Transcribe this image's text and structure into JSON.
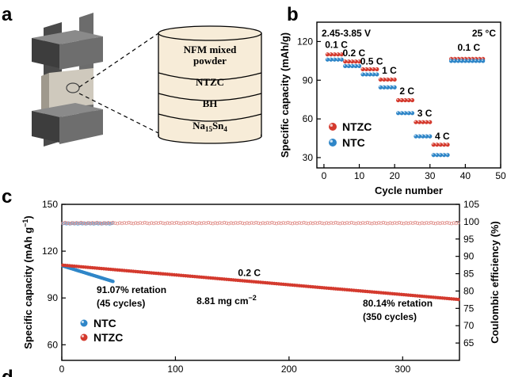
{
  "panel_a": {
    "label": "a",
    "layers": [
      "NFM mixed",
      "powder",
      "NTZC",
      "BH",
      "Na",
      "15",
      "Sn",
      "4"
    ],
    "colors": {
      "layer_fill": "#f7ecd8",
      "die_dark": "#5a5a5a",
      "die_light": "#d0ccc4"
    }
  },
  "panel_b_label": "b",
  "panel_c_label": "c",
  "panel_d_label": "d",
  "chart_data": [
    {
      "type": "scatter",
      "panel": "b",
      "title": "",
      "xlabel": "Cycle number",
      "ylabel": "Specific capacity (mAh/g)",
      "xlim": [
        -2,
        50
      ],
      "ylim": [
        22,
        135
      ],
      "xticks": [
        0,
        10,
        20,
        30,
        40,
        50
      ],
      "yticks": [
        30,
        60,
        90,
        120
      ],
      "annotations": [
        "2.45-3.85 V",
        "25 °C"
      ],
      "rate_labels": [
        {
          "text": "0.1 C",
          "x": 3.5,
          "y": 115
        },
        {
          "text": "0.2 C",
          "x": 8.5,
          "y": 108.5
        },
        {
          "text": "0.5 C",
          "x": 13.5,
          "y": 102
        },
        {
          "text": "1 C",
          "x": 18.5,
          "y": 95
        },
        {
          "text": "2 C",
          "x": 23.5,
          "y": 79
        },
        {
          "text": "3 C",
          "x": 28.5,
          "y": 62
        },
        {
          "text": "4 C",
          "x": 33.5,
          "y": 44
        },
        {
          "text": "0.1 C",
          "x": 41,
          "y": 113
        }
      ],
      "legend": [
        "NTZC",
        "NTC"
      ],
      "series": [
        {
          "name": "NTZC",
          "color": "#d43a2e",
          "segments": [
            {
              "x_start": 1,
              "x_end": 5,
              "y": 110
            },
            {
              "x_start": 6,
              "x_end": 10,
              "y": 104.5
            },
            {
              "x_start": 11,
              "x_end": 15,
              "y": 98.5
            },
            {
              "x_start": 16,
              "x_end": 20,
              "y": 90.5
            },
            {
              "x_start": 21,
              "x_end": 25,
              "y": 74.5
            },
            {
              "x_start": 26,
              "x_end": 30,
              "y": 57.5
            },
            {
              "x_start": 31,
              "x_end": 35,
              "y": 40
            },
            {
              "x_start": 36,
              "x_end": 45,
              "y": 106.5
            }
          ]
        },
        {
          "name": "NTC",
          "color": "#2f86c8",
          "segments": [
            {
              "x_start": 1,
              "x_end": 5,
              "y": 106
            },
            {
              "x_start": 6,
              "x_end": 10,
              "y": 101
            },
            {
              "x_start": 11,
              "x_end": 15,
              "y": 94.5
            },
            {
              "x_start": 16,
              "x_end": 20,
              "y": 84.5
            },
            {
              "x_start": 21,
              "x_end": 25,
              "y": 64.5
            },
            {
              "x_start": 26,
              "x_end": 30,
              "y": 46.5
            },
            {
              "x_start": 31,
              "x_end": 35,
              "y": 32
            },
            {
              "x_start": 36,
              "x_end": 45,
              "y": 105
            }
          ]
        }
      ]
    },
    {
      "type": "scatter",
      "panel": "c",
      "title": "",
      "xlabel": "",
      "ylabel": "Specific capacity (mAh g",
      "ylabel_sup": "−1",
      "ylabel_end": ")",
      "y2label": "Coulombic efficiency (%)",
      "xlim": [
        0,
        350
      ],
      "ylim": [
        50,
        150
      ],
      "y2lim": [
        60,
        105
      ],
      "xticks": [
        0,
        100,
        200,
        300
      ],
      "yticks": [
        60,
        90,
        120,
        150
      ],
      "y2ticks": [
        65,
        70,
        75,
        80,
        85,
        90,
        95,
        100,
        105
      ],
      "annotations": [
        {
          "text": "0.2 C",
          "x": 165,
          "y": 104
        },
        {
          "text": "8.81 mg cm",
          "sup": "−2",
          "x": 145,
          "y": 86
        }
      ],
      "retention": [
        {
          "line1": "91.07% retation",
          "line2": "(45 cycles)",
          "color": "#2f86c8"
        },
        {
          "line1": "80.14% retation",
          "line2": "(350 cycles)",
          "color": "#d43a2e"
        }
      ],
      "legend": [
        "NTC",
        "NTZC"
      ],
      "series": [
        {
          "name": "NTC capacity",
          "color": "#2f86c8",
          "axis": "left",
          "x_start": 1,
          "x_end": 45,
          "y_start": 110.5,
          "y_end": 100.6
        },
        {
          "name": "NTZC capacity",
          "color": "#d43a2e",
          "axis": "left",
          "x_start": 1,
          "x_end": 350,
          "y_start": 111,
          "y_end": 89
        },
        {
          "name": "NTC coulombic efficiency",
          "color": "#6aa8d8",
          "axis": "right",
          "x_start": 1,
          "x_end": 45,
          "y_value": 99.5
        },
        {
          "name": "NTZC coulombic efficiency",
          "color": "#e08f8a",
          "axis": "right",
          "x_start": 1,
          "x_end": 350,
          "y_value": 99.6
        }
      ]
    }
  ]
}
